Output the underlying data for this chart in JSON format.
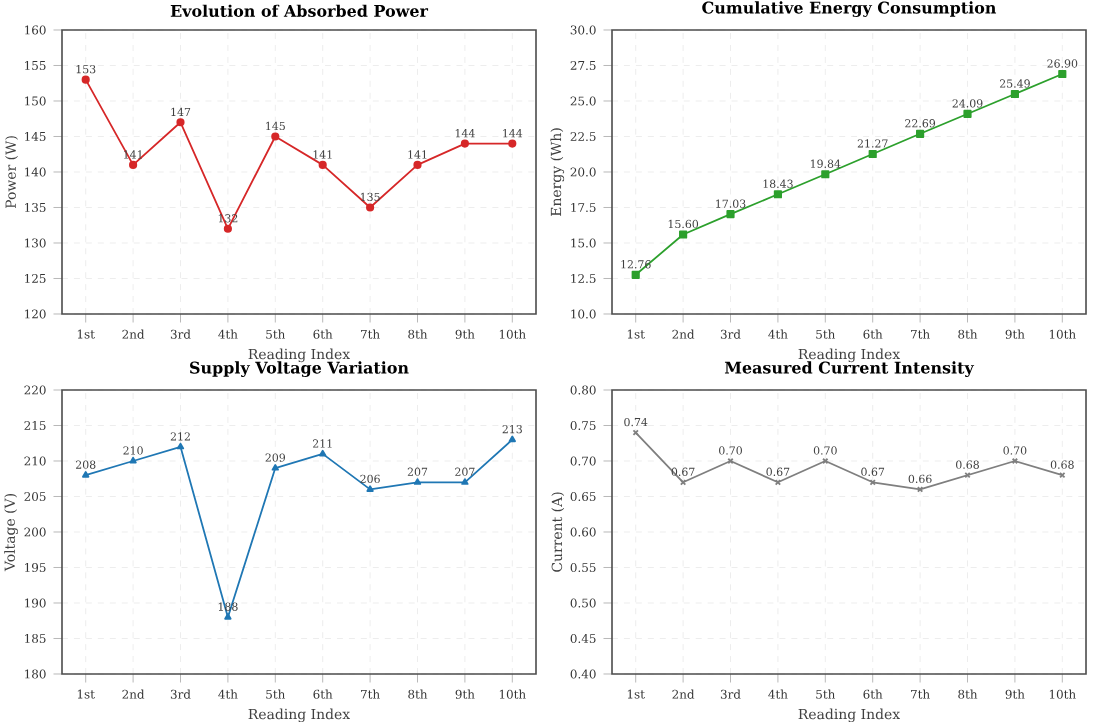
{
  "chart_data": [
    {
      "type": "line",
      "title": "Evolution of Absorbed Power",
      "xlabel": "Reading Index",
      "ylabel": "Power (W)",
      "categories": [
        "1st",
        "2nd",
        "3rd",
        "4th",
        "5th",
        "6th",
        "7th",
        "8th",
        "9th",
        "10th"
      ],
      "series": [
        {
          "color": "#d62728",
          "values": [
            153,
            141,
            147,
            132,
            145,
            141,
            135,
            141,
            144,
            144
          ],
          "value_labels": [
            "153",
            "141",
            "147",
            "132",
            "145",
            "141",
            "135",
            "141",
            "144",
            "144"
          ]
        }
      ],
      "ylim": [
        120,
        160
      ],
      "yticks": [
        120,
        125,
        130,
        135,
        140,
        145,
        150,
        155,
        160
      ],
      "grid": true,
      "marker": "circle",
      "line_style": "solid"
    },
    {
      "type": "line",
      "title": "Cumulative Energy Consumption",
      "xlabel": "Reading Index",
      "ylabel": "Energy (Wh)",
      "categories": [
        "1st",
        "2nd",
        "3rd",
        "4th",
        "5th",
        "6th",
        "7th",
        "8th",
        "9th",
        "10th"
      ],
      "series": [
        {
          "color": "#2ca02c",
          "values": [
            12.76,
            15.6,
            17.03,
            18.43,
            19.84,
            21.27,
            22.69,
            24.09,
            25.49,
            26.9
          ],
          "value_labels": [
            "12.76",
            "15.60",
            "17.03",
            "18.43",
            "19.84",
            "21.27",
            "22.69",
            "24.09",
            "25.49",
            "26.90"
          ]
        }
      ],
      "ylim": [
        10,
        30
      ],
      "yticks": [
        {
          "value": 10,
          "label": "10.0"
        },
        {
          "value": 12.5,
          "label": "12.5"
        },
        {
          "value": 15,
          "label": "15.0"
        },
        {
          "value": 17.5,
          "label": "17.5"
        },
        {
          "value": 20,
          "label": "20.0"
        },
        {
          "value": 22.5,
          "label": "22.5"
        },
        {
          "value": 25,
          "label": "25.0"
        },
        {
          "value": 27.5,
          "label": "27.5"
        },
        {
          "value": 30,
          "label": "30.0"
        }
      ],
      "grid": true,
      "marker": "square",
      "line_style": "solid"
    },
    {
      "type": "line",
      "title": "Supply Voltage Variation",
      "xlabel": "Reading Index",
      "ylabel": "Voltage (V)",
      "categories": [
        "1st",
        "2nd",
        "3rd",
        "4th",
        "5th",
        "6th",
        "7th",
        "8th",
        "9th",
        "10th"
      ],
      "series": [
        {
          "color": "#1f77b4",
          "values": [
            208,
            210,
            212,
            188,
            209,
            211,
            206,
            207,
            207,
            213
          ],
          "value_labels": [
            "208",
            "210",
            "212",
            "188",
            "209",
            "211",
            "206",
            "207",
            "207",
            "213"
          ]
        }
      ],
      "ylim": [
        180,
        220
      ],
      "yticks": [
        180,
        185,
        190,
        195,
        200,
        205,
        210,
        215,
        220
      ],
      "grid": true,
      "marker": "triangle",
      "line_style": "solid"
    },
    {
      "type": "line",
      "title": "Measured Current Intensity",
      "xlabel": "Reading Index",
      "ylabel": "Current (A)",
      "categories": [
        "1st",
        "2nd",
        "3rd",
        "4th",
        "5th",
        "6th",
        "7th",
        "8th",
        "9th",
        "10th"
      ],
      "series": [
        {
          "color": "#7f7f7f",
          "values": [
            0.74,
            0.67,
            0.7,
            0.67,
            0.7,
            0.67,
            0.66,
            0.68,
            0.7,
            0.68
          ],
          "value_labels": [
            "0.74",
            "0.67",
            "0.70",
            "0.67",
            "0.70",
            "0.67",
            "0.66",
            "0.68",
            "0.70",
            "0.68"
          ]
        }
      ],
      "ylim": [
        0.4,
        0.8
      ],
      "yticks": [
        {
          "value": 0.4,
          "label": "0.40"
        },
        {
          "value": 0.45,
          "label": "0.45"
        },
        {
          "value": 0.5,
          "label": "0.50"
        },
        {
          "value": 0.55,
          "label": "0.55"
        },
        {
          "value": 0.6,
          "label": "0.60"
        },
        {
          "value": 0.65,
          "label": "0.65"
        },
        {
          "value": 0.7,
          "label": "0.70"
        },
        {
          "value": 0.75,
          "label": "0.75"
        },
        {
          "value": 0.8,
          "label": "0.80"
        }
      ],
      "grid": true,
      "marker": "cross",
      "line_style": "solid"
    }
  ]
}
